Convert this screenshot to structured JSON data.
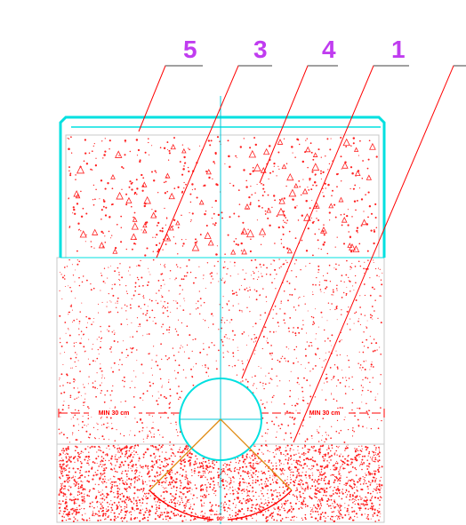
{
  "callouts": [
    {
      "id": "5",
      "label": "5",
      "color": "#c03cf0"
    },
    {
      "id": "3",
      "label": "3",
      "color": "#c03cf0"
    },
    {
      "id": "4",
      "label": "4",
      "color": "#c03cf0"
    },
    {
      "id": "1",
      "label": "1",
      "color": "#c03cf0"
    },
    {
      "id": "6",
      "label": "",
      "color": "#c03cf0"
    }
  ],
  "dimensions": {
    "left_label": "MIN 30 cm",
    "right_label": "MIN 30 cm"
  },
  "angle_label": "90°",
  "colors": {
    "leader": "#ff0000",
    "fill_dots": "#ff2020",
    "outline": "#b0b0b0",
    "cyan": "#00e0e0",
    "orange": "#e08a10",
    "underline": "#808080"
  }
}
